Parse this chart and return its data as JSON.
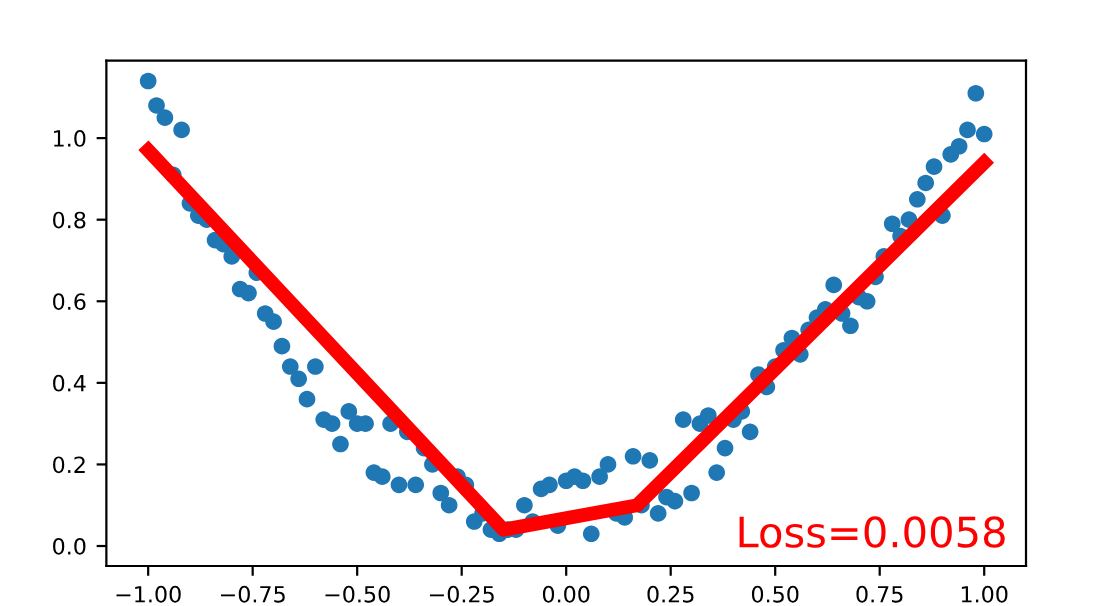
{
  "chart_data": {
    "type": "scatter",
    "xlim": [
      -1.1,
      1.1
    ],
    "ylim": [
      -0.049,
      1.19
    ],
    "xticks": [
      {
        "value": -1.0,
        "label": "−1.00"
      },
      {
        "value": -0.75,
        "label": "−0.75"
      },
      {
        "value": -0.5,
        "label": "−0.50"
      },
      {
        "value": -0.25,
        "label": "−0.25"
      },
      {
        "value": 0.0,
        "label": "0.00"
      },
      {
        "value": 0.25,
        "label": "0.25"
      },
      {
        "value": 0.5,
        "label": "0.50"
      },
      {
        "value": 0.75,
        "label": "0.75"
      },
      {
        "value": 1.0,
        "label": "1.00"
      }
    ],
    "yticks": [
      {
        "value": 0.0,
        "label": "0.0"
      },
      {
        "value": 0.2,
        "label": "0.2"
      },
      {
        "value": 0.4,
        "label": "0.4"
      },
      {
        "value": 0.6,
        "label": "0.6"
      },
      {
        "value": 0.8,
        "label": "0.8"
      },
      {
        "value": 1.0,
        "label": "1.0"
      }
    ],
    "grid": false,
    "annotations": [
      "Loss=0.0058"
    ],
    "series": [
      {
        "color": "#1f77b4",
        "marker": "circle",
        "x": [
          -1.0,
          -0.98,
          -0.96,
          -0.94,
          -0.92,
          -0.9,
          -0.88,
          -0.86,
          -0.84,
          -0.82,
          -0.8,
          -0.78,
          -0.76,
          -0.74,
          -0.72,
          -0.7,
          -0.68,
          -0.66,
          -0.64,
          -0.62,
          -0.6,
          -0.58,
          -0.56,
          -0.54,
          -0.52,
          -0.5,
          -0.48,
          -0.46,
          -0.44,
          -0.42,
          -0.4,
          -0.38,
          -0.36,
          -0.34,
          -0.32,
          -0.3,
          -0.28,
          -0.26,
          -0.24,
          -0.22,
          -0.2,
          -0.18,
          -0.16,
          -0.14,
          -0.12,
          -0.1,
          -0.08,
          -0.06,
          -0.04,
          -0.02,
          0.0,
          0.02,
          0.04,
          0.06,
          0.08,
          0.1,
          0.12,
          0.14,
          0.16,
          0.18,
          0.2,
          0.22,
          0.24,
          0.26,
          0.28,
          0.3,
          0.32,
          0.34,
          0.36,
          0.38,
          0.4,
          0.42,
          0.44,
          0.46,
          0.48,
          0.5,
          0.52,
          0.54,
          0.56,
          0.58,
          0.6,
          0.62,
          0.64,
          0.66,
          0.68,
          0.7,
          0.72,
          0.74,
          0.76,
          0.78,
          0.8,
          0.82,
          0.84,
          0.86,
          0.88,
          0.9,
          0.92,
          0.94,
          0.96,
          0.98,
          1.0
        ],
        "values": [
          1.14,
          1.08,
          1.05,
          0.91,
          1.02,
          0.84,
          0.81,
          0.8,
          0.75,
          0.74,
          0.71,
          0.63,
          0.62,
          0.67,
          0.57,
          0.55,
          0.49,
          0.44,
          0.41,
          0.36,
          0.44,
          0.31,
          0.3,
          0.25,
          0.33,
          0.3,
          0.3,
          0.18,
          0.17,
          0.3,
          0.15,
          0.28,
          0.15,
          0.24,
          0.2,
          0.13,
          0.1,
          0.17,
          0.15,
          0.06,
          0.08,
          0.04,
          0.03,
          0.04,
          0.04,
          0.1,
          0.06,
          0.14,
          0.15,
          0.05,
          0.16,
          0.17,
          0.16,
          0.03,
          0.17,
          0.2,
          0.08,
          0.07,
          0.22,
          0.1,
          0.21,
          0.08,
          0.12,
          0.11,
          0.31,
          0.13,
          0.3,
          0.32,
          0.18,
          0.24,
          0.31,
          0.33,
          0.28,
          0.42,
          0.39,
          0.44,
          0.48,
          0.51,
          0.47,
          0.53,
          0.56,
          0.58,
          0.64,
          0.57,
          0.54,
          0.61,
          0.6,
          0.66,
          0.71,
          0.79,
          0.76,
          0.8,
          0.85,
          0.89,
          0.93,
          0.81,
          0.96,
          0.98,
          1.02,
          1.11,
          1.01
        ]
      },
      {
        "type": "line",
        "color": "#ff0000",
        "x": [
          -1.0,
          -0.15,
          0.17,
          1.0
        ],
        "values": [
          0.97,
          0.04,
          0.1,
          0.94
        ]
      }
    ]
  }
}
